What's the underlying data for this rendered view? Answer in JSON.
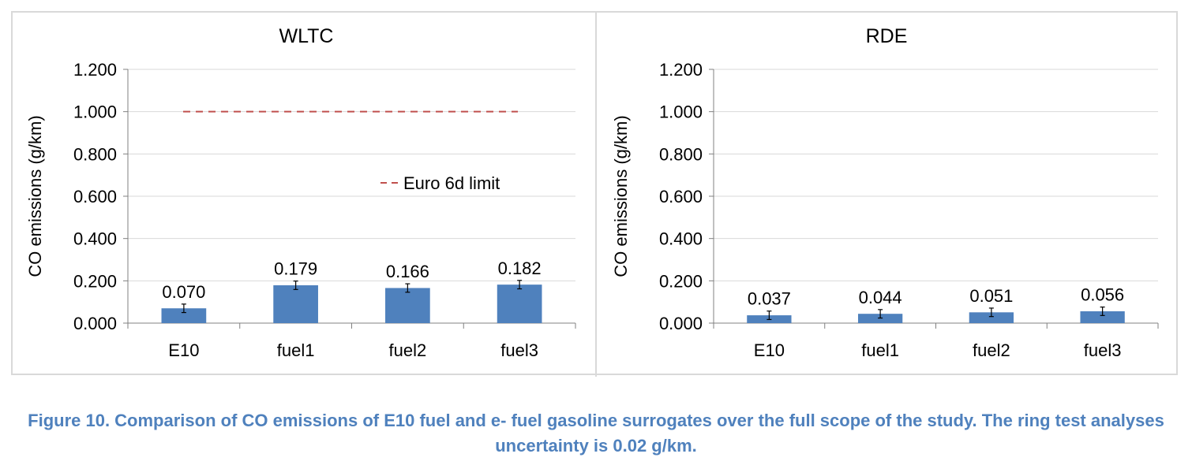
{
  "chart_data": [
    {
      "type": "bar",
      "title": "WLTC",
      "categories": [
        "E10",
        "fuel1",
        "fuel2",
        "fuel3"
      ],
      "values": [
        0.07,
        0.179,
        0.166,
        0.182
      ],
      "data_labels": [
        "0.070",
        "0.179",
        "0.166",
        "0.182"
      ],
      "error": 0.02,
      "ylabel": "CO emissions (g/km)",
      "ylim": [
        0,
        1.2
      ],
      "yticks": [
        "0.000",
        "0.200",
        "0.400",
        "0.600",
        "0.800",
        "1.000",
        "1.200"
      ],
      "grid": true,
      "bar_color": "#4f81bd",
      "limit_line": {
        "name": "Euro 6d limit",
        "value": 1.0,
        "color": "#c0504d"
      },
      "legend_position": "center-right"
    },
    {
      "type": "bar",
      "title": "RDE",
      "categories": [
        "E10",
        "fuel1",
        "fuel2",
        "fuel3"
      ],
      "values": [
        0.037,
        0.044,
        0.051,
        0.056
      ],
      "data_labels": [
        "0.037",
        "0.044",
        "0.051",
        "0.056"
      ],
      "error": 0.02,
      "ylabel": "CO emissions (g/km)",
      "ylim": [
        0,
        1.2
      ],
      "yticks": [
        "0.000",
        "0.200",
        "0.400",
        "0.600",
        "0.800",
        "1.000",
        "1.200"
      ],
      "grid": true,
      "bar_color": "#4f81bd"
    }
  ],
  "caption": "Figure 10. Comparison of CO emissions of E10 fuel and e- fuel gasoline surrogates over the full scope of the study. The ring test analyses uncertainty is 0.02 g/km.",
  "colors": {
    "caption": "#4f81bd",
    "bars": "#4f81bd",
    "limit": "#c0504d",
    "grid": "#d9d9d9"
  }
}
